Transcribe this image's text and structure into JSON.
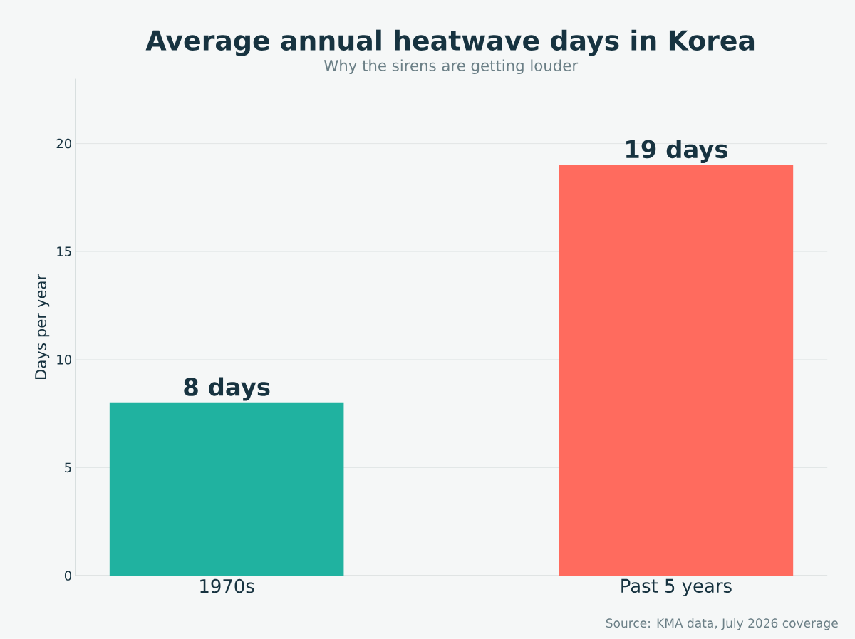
{
  "chart_data": {
    "type": "bar",
    "title": "Average annual heatwave days in Korea",
    "subtitle": "Why the sirens are getting louder",
    "ylabel": "Days per year",
    "categories": [
      "1970s",
      "Past 5 years"
    ],
    "values": [
      8,
      19
    ],
    "colors": [
      "#20b2a0",
      "#ff6b5e"
    ],
    "value_labels": [
      "8 days",
      "19 days"
    ],
    "ylim": [
      0,
      23
    ],
    "yticks": [
      0,
      5,
      10,
      15,
      20
    ],
    "grid": "y",
    "annotations": [
      "Source: KMA data, July 2026 coverage"
    ]
  }
}
